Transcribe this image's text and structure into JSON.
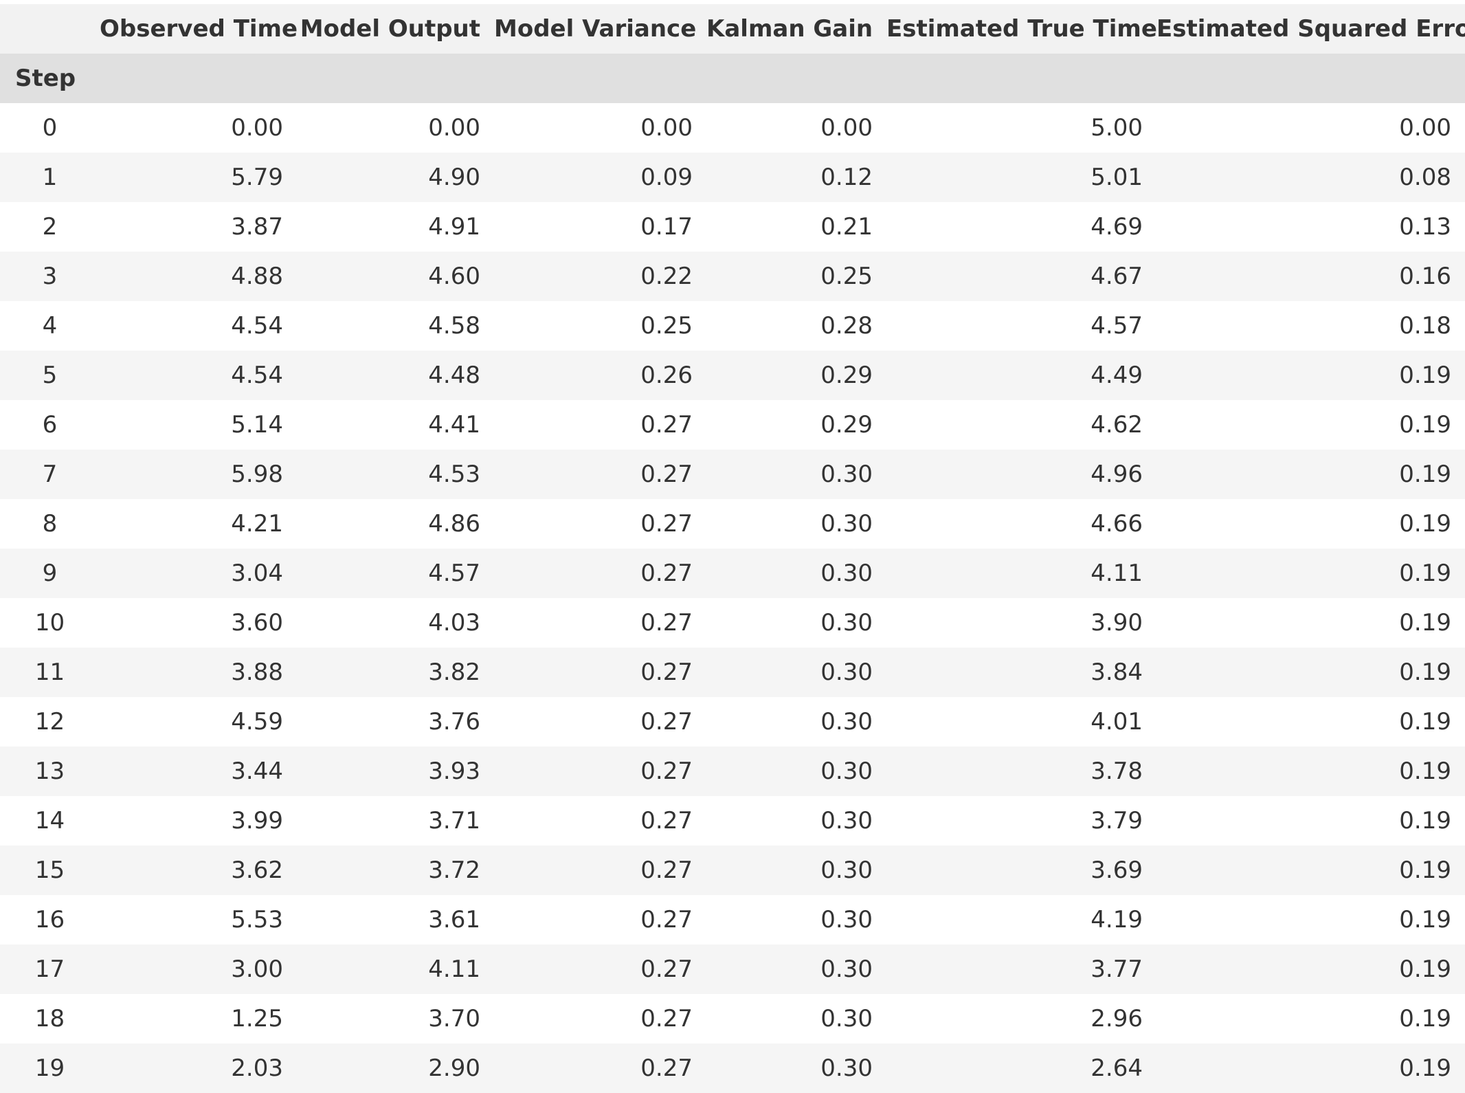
{
  "table": {
    "columns": [
      "Observed Time",
      "Model Output",
      "Model Variance",
      "Kalman Gain",
      "Estimated True Time",
      "Estimated Squared Error"
    ],
    "index_name": "Step",
    "rows": [
      {
        "step": "0",
        "values": [
          "0.00",
          "0.00",
          "0.00",
          "0.00",
          "5.00",
          "0.00"
        ]
      },
      {
        "step": "1",
        "values": [
          "5.79",
          "4.90",
          "0.09",
          "0.12",
          "5.01",
          "0.08"
        ]
      },
      {
        "step": "2",
        "values": [
          "3.87",
          "4.91",
          "0.17",
          "0.21",
          "4.69",
          "0.13"
        ]
      },
      {
        "step": "3",
        "values": [
          "4.88",
          "4.60",
          "0.22",
          "0.25",
          "4.67",
          "0.16"
        ]
      },
      {
        "step": "4",
        "values": [
          "4.54",
          "4.58",
          "0.25",
          "0.28",
          "4.57",
          "0.18"
        ]
      },
      {
        "step": "5",
        "values": [
          "4.54",
          "4.48",
          "0.26",
          "0.29",
          "4.49",
          "0.19"
        ]
      },
      {
        "step": "6",
        "values": [
          "5.14",
          "4.41",
          "0.27",
          "0.29",
          "4.62",
          "0.19"
        ]
      },
      {
        "step": "7",
        "values": [
          "5.98",
          "4.53",
          "0.27",
          "0.30",
          "4.96",
          "0.19"
        ]
      },
      {
        "step": "8",
        "values": [
          "4.21",
          "4.86",
          "0.27",
          "0.30",
          "4.66",
          "0.19"
        ]
      },
      {
        "step": "9",
        "values": [
          "3.04",
          "4.57",
          "0.27",
          "0.30",
          "4.11",
          "0.19"
        ]
      },
      {
        "step": "10",
        "values": [
          "3.60",
          "4.03",
          "0.27",
          "0.30",
          "3.90",
          "0.19"
        ]
      },
      {
        "step": "11",
        "values": [
          "3.88",
          "3.82",
          "0.27",
          "0.30",
          "3.84",
          "0.19"
        ]
      },
      {
        "step": "12",
        "values": [
          "4.59",
          "3.76",
          "0.27",
          "0.30",
          "4.01",
          "0.19"
        ]
      },
      {
        "step": "13",
        "values": [
          "3.44",
          "3.93",
          "0.27",
          "0.30",
          "3.78",
          "0.19"
        ]
      },
      {
        "step": "14",
        "values": [
          "3.99",
          "3.71",
          "0.27",
          "0.30",
          "3.79",
          "0.19"
        ]
      },
      {
        "step": "15",
        "values": [
          "3.62",
          "3.72",
          "0.27",
          "0.30",
          "3.69",
          "0.19"
        ]
      },
      {
        "step": "16",
        "values": [
          "5.53",
          "3.61",
          "0.27",
          "0.30",
          "4.19",
          "0.19"
        ]
      },
      {
        "step": "17",
        "values": [
          "3.00",
          "4.11",
          "0.27",
          "0.30",
          "3.77",
          "0.19"
        ]
      },
      {
        "step": "18",
        "values": [
          "1.25",
          "3.70",
          "0.27",
          "0.30",
          "2.96",
          "0.19"
        ]
      },
      {
        "step": "19",
        "values": [
          "2.03",
          "2.90",
          "0.27",
          "0.30",
          "2.64",
          "0.19"
        ]
      }
    ]
  },
  "colors": {
    "header_bg": "#f2f2f2",
    "index_header_bg": "#e0e0e0",
    "row_stripe_bg": "#f5f5f5",
    "text": "#333333"
  }
}
